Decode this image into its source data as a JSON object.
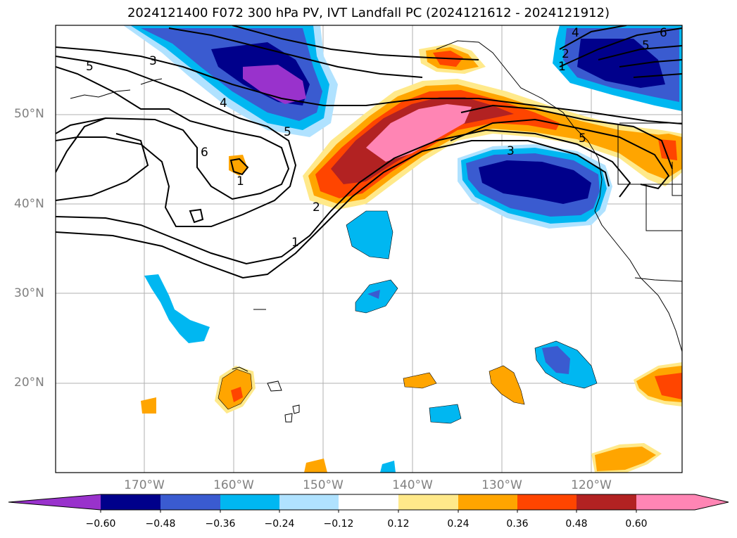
{
  "title": "2024121400 F072 300 hPa PV, IVT Landfall PC (2024121612 - 2024121912)",
  "lat_labels": [
    "50°N",
    "40°N",
    "30°N",
    "20°N"
  ],
  "lon_labels": [
    "170°W",
    "160°W",
    "150°W",
    "140°W",
    "130°W",
    "120°W"
  ],
  "colorbar": {
    "ticks": [
      "−0.60",
      "−0.48",
      "−0.36",
      "−0.24",
      "−0.12",
      "0.12",
      "0.24",
      "0.36",
      "0.48",
      "0.60"
    ],
    "colors": [
      "#9932cc",
      "#00008b",
      "#3a5bd0",
      "#00b7f1",
      "#b0e2ff",
      "#ffffff",
      "#ffe98a",
      "#ffa500",
      "#ff4500",
      "#b22222",
      "#ff85b4"
    ]
  },
  "contour_labels": [
    "5",
    "3",
    "4",
    "5",
    "6",
    "1",
    "2",
    "1",
    "3",
    "5",
    "2",
    "1",
    "5",
    "4",
    "6"
  ],
  "map_extent": {
    "lon": [
      180,
      110
    ],
    "lat": [
      10,
      60
    ]
  }
}
